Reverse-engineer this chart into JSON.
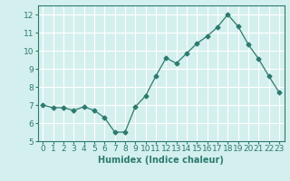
{
  "x": [
    0,
    1,
    2,
    3,
    4,
    5,
    6,
    7,
    8,
    9,
    10,
    11,
    12,
    13,
    14,
    15,
    16,
    17,
    18,
    19,
    20,
    21,
    22,
    23
  ],
  "y": [
    7.0,
    6.85,
    6.85,
    6.7,
    6.9,
    6.7,
    6.3,
    5.5,
    5.5,
    6.9,
    7.5,
    8.6,
    9.6,
    9.3,
    9.85,
    10.4,
    10.8,
    11.3,
    12.0,
    11.35,
    10.35,
    9.55,
    8.6,
    7.7
  ],
  "line_color": "#2d7a6e",
  "marker": "D",
  "marker_size": 2.5,
  "linewidth": 0.9,
  "bg_color": "#d4f0ee",
  "grid_color": "#ffffff",
  "xlabel": "Humidex (Indice chaleur)",
  "xlabel_fontsize": 7,
  "ylim": [
    5,
    12.5
  ],
  "yticks": [
    5,
    6,
    7,
    8,
    9,
    10,
    11,
    12
  ],
  "xticks": [
    0,
    1,
    2,
    3,
    4,
    5,
    6,
    7,
    8,
    9,
    10,
    11,
    12,
    13,
    14,
    15,
    16,
    17,
    18,
    19,
    20,
    21,
    22,
    23
  ],
  "tick_fontsize": 6.5,
  "axes_color": "#2d7a6e",
  "spine_color": "#2d7a6e"
}
